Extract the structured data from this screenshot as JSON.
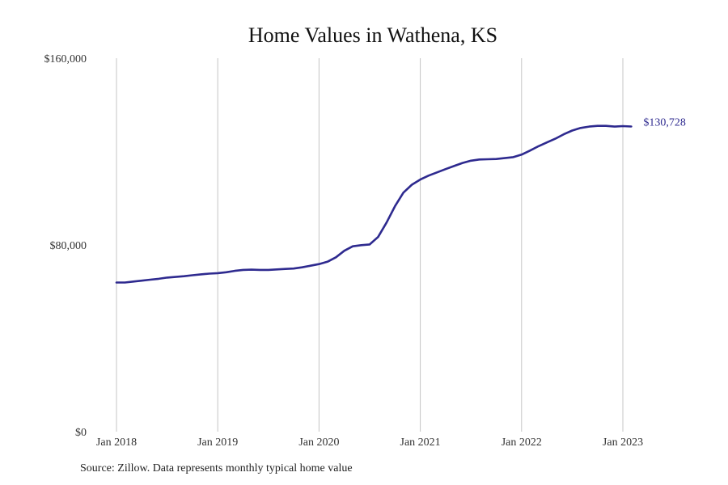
{
  "chart_data": {
    "type": "line",
    "title": "Home Values in Wathena, KS",
    "y_tick_labels": [
      "$0",
      "$80,000",
      "$160,000"
    ],
    "y_ticks": [
      0,
      80000,
      160000
    ],
    "ylim": [
      0,
      160000
    ],
    "x_tick_labels": [
      "Jan 2018",
      "Jan 2019",
      "Jan 2020",
      "Jan 2021",
      "Jan 2022",
      "Jan 2023"
    ],
    "x_ticks": [
      "2018-01",
      "2019-01",
      "2020-01",
      "2021-01",
      "2022-01",
      "2023-01"
    ],
    "xlim": [
      "2018-01",
      "2023-02"
    ],
    "grid": "vertical",
    "color": "#2e2a8f",
    "end_label": "$130,728",
    "x": [
      "2018-01",
      "2018-02",
      "2018-03",
      "2018-04",
      "2018-05",
      "2018-06",
      "2018-07",
      "2018-08",
      "2018-09",
      "2018-10",
      "2018-11",
      "2018-12",
      "2019-01",
      "2019-02",
      "2019-03",
      "2019-04",
      "2019-05",
      "2019-06",
      "2019-07",
      "2019-08",
      "2019-09",
      "2019-10",
      "2019-11",
      "2019-12",
      "2020-01",
      "2020-02",
      "2020-03",
      "2020-04",
      "2020-05",
      "2020-06",
      "2020-07",
      "2020-08",
      "2020-09",
      "2020-10",
      "2020-11",
      "2020-12",
      "2021-01",
      "2021-02",
      "2021-03",
      "2021-04",
      "2021-05",
      "2021-06",
      "2021-07",
      "2021-08",
      "2021-09",
      "2021-10",
      "2021-11",
      "2021-12",
      "2022-01",
      "2022-02",
      "2022-03",
      "2022-04",
      "2022-05",
      "2022-06",
      "2022-07",
      "2022-08",
      "2022-09",
      "2022-10",
      "2022-11",
      "2022-12",
      "2023-01",
      "2023-02"
    ],
    "y": [
      63900,
      63900,
      64300,
      64700,
      65100,
      65500,
      66000,
      66300,
      66600,
      67000,
      67400,
      67700,
      67900,
      68300,
      68900,
      69300,
      69400,
      69300,
      69300,
      69500,
      69700,
      69900,
      70400,
      71100,
      71800,
      72800,
      74700,
      77500,
      79400,
      79900,
      80200,
      83400,
      89600,
      96600,
      102400,
      105800,
      108000,
      109700,
      111100,
      112500,
      113800,
      115100,
      116100,
      116600,
      116700,
      116800,
      117200,
      117600,
      118700,
      120400,
      122300,
      123900,
      125500,
      127400,
      129000,
      130100,
      130700,
      131000,
      131000,
      130700,
      130900,
      130728
    ],
    "x_end_label": "2023-02"
  },
  "source_text": "Source: Zillow. Data represents monthly typical home value"
}
